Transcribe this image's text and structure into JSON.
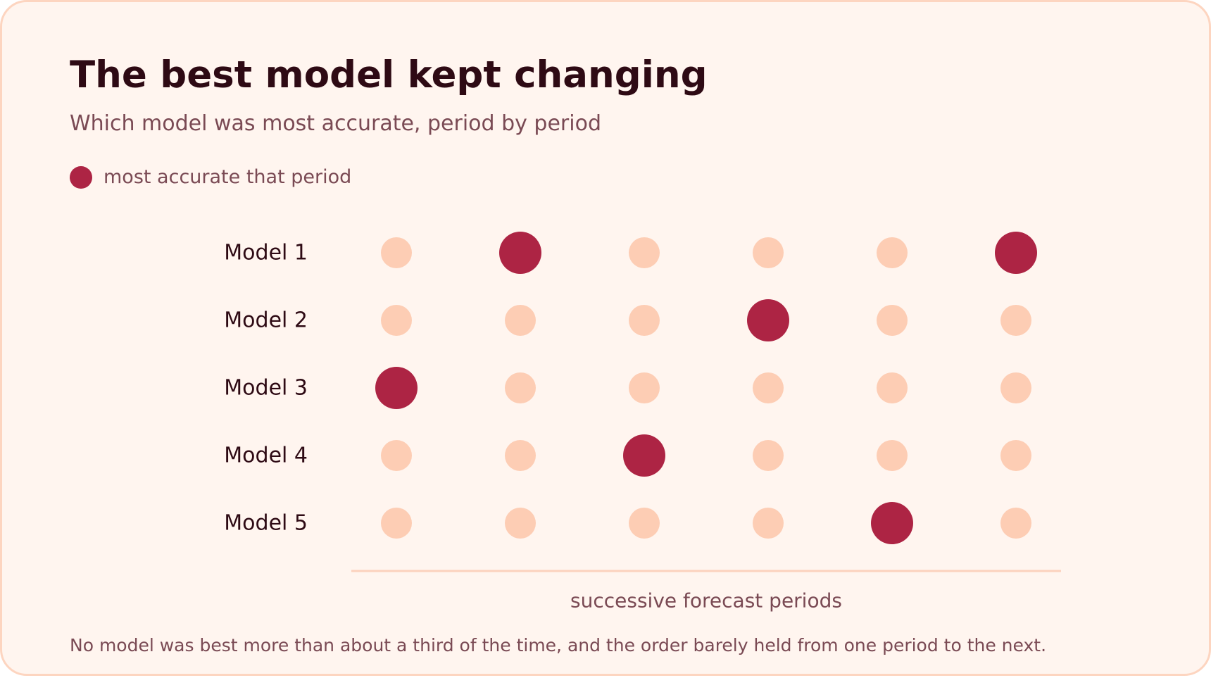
{
  "header": {
    "title": "The best model kept changing",
    "subtitle": "Which model was most accurate, period by period"
  },
  "legend": {
    "label": "most accurate that period"
  },
  "footer": {
    "note": "No model was best more than about a third of the time, and the order barely held from one period to the next."
  },
  "colors": {
    "highlight": "#ad2444",
    "base": "#fdcdb4",
    "axis": "#fcd2bd"
  },
  "chart_data": {
    "type": "scatter",
    "title": "The best model kept changing",
    "subtitle": "Which model was most accurate, period by period",
    "xlabel": "successive forecast periods",
    "ylabel": "",
    "rows": [
      "Model 1",
      "Model 2",
      "Model 3",
      "Model 4",
      "Model 5"
    ],
    "period_count": 6,
    "best_model_by_period": [
      "Model 3",
      "Model 1",
      "Model 4",
      "Model 2",
      "Model 5",
      "Model 1"
    ],
    "legend": [
      "most accurate that period"
    ],
    "legend_position": "top-left",
    "grid": false
  }
}
